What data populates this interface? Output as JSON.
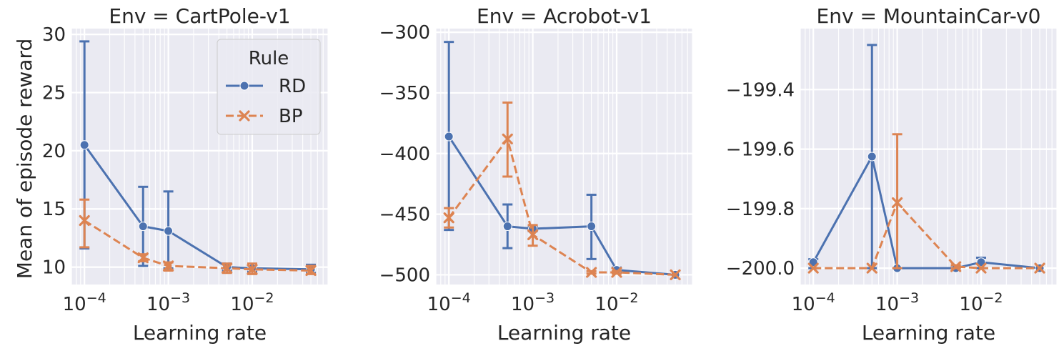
{
  "colors": {
    "RD": "#4c72b0",
    "BP": "#dd8452",
    "background": "#eaeaf2",
    "grid": "#ffffff"
  },
  "ylabel": "Mean of episode reward",
  "legend": {
    "title": "Rule",
    "placement": "upper right of first panel",
    "entries": [
      "RD",
      "BP"
    ]
  },
  "chart_data": [
    {
      "type": "line",
      "title": "Env = CartPole-v1",
      "xlabel": "Learning rate",
      "ylabel": "Mean of episode reward",
      "xscale": "log",
      "xlim": [
        7e-05,
        0.08
      ],
      "ylim": [
        8.5,
        30.5
      ],
      "xticks": [
        {
          "value": 0.0001,
          "base": "10",
          "exp": "−4"
        },
        {
          "value": 0.001,
          "base": "10",
          "exp": "−3"
        },
        {
          "value": 0.01,
          "base": "10",
          "exp": "−2"
        }
      ],
      "yticks": [
        {
          "value": 10,
          "label": "10"
        },
        {
          "value": 15,
          "label": "15"
        },
        {
          "value": 20,
          "label": "20"
        },
        {
          "value": 25,
          "label": "25"
        },
        {
          "value": 30,
          "label": "30"
        }
      ],
      "grid": true,
      "series": [
        {
          "name": "RD",
          "x": [
            0.0001,
            0.0005,
            0.001,
            0.005,
            0.01,
            0.05
          ],
          "y": [
            20.5,
            13.5,
            13.1,
            10.0,
            9.9,
            9.8
          ],
          "lo": [
            11.6,
            10.1,
            9.9,
            9.7,
            9.6,
            9.5
          ],
          "hi": [
            29.4,
            16.9,
            16.5,
            10.3,
            10.2,
            10.2
          ]
        },
        {
          "name": "BP",
          "x": [
            0.0001,
            0.0005,
            0.001,
            0.005,
            0.01,
            0.05
          ],
          "y": [
            14.0,
            10.8,
            10.1,
            9.9,
            9.8,
            9.7
          ],
          "lo": [
            11.7,
            10.5,
            9.7,
            9.5,
            9.4,
            9.4
          ],
          "hi": [
            15.8,
            11.1,
            10.4,
            10.3,
            10.3,
            10.1
          ]
        }
      ]
    },
    {
      "type": "line",
      "title": "Env = Acrobot-v1",
      "xlabel": "Learning rate",
      "xscale": "log",
      "xlim": [
        7e-05,
        0.08
      ],
      "ylim": [
        -508,
        -297
      ],
      "xticks": [
        {
          "value": 0.0001,
          "base": "10",
          "exp": "−4"
        },
        {
          "value": 0.001,
          "base": "10",
          "exp": "−3"
        },
        {
          "value": 0.01,
          "base": "10",
          "exp": "−2"
        }
      ],
      "yticks": [
        {
          "value": -500,
          "label": "−500"
        },
        {
          "value": -450,
          "label": "−450"
        },
        {
          "value": -400,
          "label": "−400"
        },
        {
          "value": -350,
          "label": "−350"
        },
        {
          "value": -300,
          "label": "−300"
        }
      ],
      "grid": true,
      "series": [
        {
          "name": "RD",
          "x": [
            0.0001,
            0.0005,
            0.001,
            0.005,
            0.01,
            0.05
          ],
          "y": [
            -386,
            -460,
            -462,
            -460,
            -496,
            -500
          ],
          "lo": [
            -463,
            -478,
            -464,
            -487,
            -498,
            -500
          ],
          "hi": [
            -308,
            -442,
            -460,
            -434,
            -494,
            -500
          ]
        },
        {
          "name": "BP",
          "x": [
            0.0001,
            0.0005,
            0.001,
            0.005,
            0.01,
            0.05
          ],
          "y": [
            -453,
            -388,
            -467,
            -498,
            -498,
            -500
          ],
          "lo": [
            -461,
            -419,
            -476,
            -499,
            -499,
            -500
          ],
          "hi": [
            -445,
            -358,
            -459,
            -497,
            -497,
            -500
          ]
        }
      ]
    },
    {
      "type": "line",
      "title": "Env = MountainCar-v0",
      "xlabel": "Learning rate",
      "xscale": "log",
      "xlim": [
        7e-05,
        0.08
      ],
      "ylim": [
        -200.055,
        -199.195
      ],
      "xticks": [
        {
          "value": 0.0001,
          "base": "10",
          "exp": "−4"
        },
        {
          "value": 0.001,
          "base": "10",
          "exp": "−3"
        },
        {
          "value": 0.01,
          "base": "10",
          "exp": "−2"
        }
      ],
      "yticks": [
        {
          "value": -200.0,
          "label": "−200.0"
        },
        {
          "value": -199.8,
          "label": "−199.8"
        },
        {
          "value": -199.6,
          "label": "−199.6"
        },
        {
          "value": -199.4,
          "label": "−199.4"
        }
      ],
      "grid": true,
      "series": [
        {
          "name": "RD",
          "x": [
            0.0001,
            0.0005,
            0.001,
            0.005,
            0.01,
            0.05
          ],
          "y": [
            -199.98,
            -199.625,
            -200.0,
            -200.0,
            -199.98,
            -200.0
          ],
          "lo": [
            -200.0,
            -200.0,
            -200.0,
            -200.0,
            -200.0,
            -200.0
          ],
          "hi": [
            -199.97,
            -199.25,
            -200.0,
            -199.995,
            -199.965,
            -200.0
          ]
        },
        {
          "name": "BP",
          "x": [
            0.0001,
            0.0005,
            0.001,
            0.005,
            0.01,
            0.05
          ],
          "y": [
            -200.0,
            -200.0,
            -199.78,
            -199.995,
            -200.0,
            -200.0
          ],
          "lo": [
            -200.0,
            -200.0,
            -200.0,
            -200.0,
            -200.0,
            -200.0
          ],
          "hi": [
            -200.0,
            -200.0,
            -199.55,
            -199.99,
            -200.0,
            -200.0
          ]
        }
      ]
    }
  ]
}
